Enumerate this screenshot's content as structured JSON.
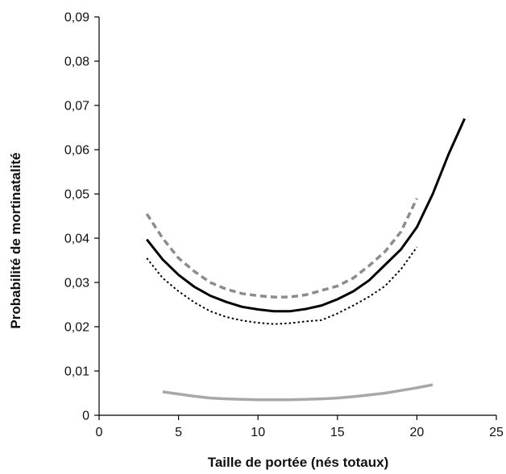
{
  "chart_data": {
    "type": "line",
    "title": "",
    "xlabel": "Taille de portée (nés totaux)",
    "ylabel": "Probabilité de mortinatalité",
    "xlim": [
      0,
      25
    ],
    "ylim": [
      0,
      0.09
    ],
    "x_ticks": [
      0,
      5,
      10,
      15,
      20,
      25
    ],
    "x_tick_labels": [
      "0",
      "5",
      "10",
      "15",
      "20",
      "25"
    ],
    "y_ticks": [
      0,
      0.01,
      0.02,
      0.03,
      0.04,
      0.05,
      0.06,
      0.07,
      0.08,
      0.09
    ],
    "y_tick_labels": [
      "0",
      "0,01",
      "0,02",
      "0,03",
      "0,04",
      "0,05",
      "0,06",
      "0,07",
      "0,08",
      "0,09"
    ],
    "grid": false,
    "legend": "none",
    "series": [
      {
        "style": "dashed",
        "color": "#8c8c8c",
        "x": [
          3,
          4,
          5,
          6,
          7,
          8,
          9,
          10,
          11,
          12,
          13,
          14,
          15,
          16,
          17,
          18,
          19,
          20
        ],
        "values": [
          0.0455,
          0.04,
          0.0355,
          0.0325,
          0.03,
          0.0285,
          0.0275,
          0.027,
          0.0267,
          0.0267,
          0.0272,
          0.0282,
          0.0292,
          0.031,
          0.0338,
          0.037,
          0.0415,
          0.049
        ]
      },
      {
        "style": "solid",
        "color": "#000000",
        "x": [
          3,
          4,
          5,
          6,
          7,
          8,
          9,
          10,
          11,
          12,
          13,
          14,
          15,
          16,
          17,
          18,
          19,
          20,
          21,
          22,
          23
        ],
        "values": [
          0.0397,
          0.0352,
          0.0317,
          0.029,
          0.027,
          0.0256,
          0.0245,
          0.0239,
          0.0235,
          0.0235,
          0.024,
          0.0248,
          0.0262,
          0.028,
          0.0305,
          0.034,
          0.0375,
          0.0425,
          0.05,
          0.059,
          0.067
        ]
      },
      {
        "style": "dotted",
        "color": "#000000",
        "x": [
          3,
          4,
          5,
          6,
          7,
          8,
          9,
          10,
          11,
          12,
          13,
          14,
          15,
          16,
          17,
          18,
          19,
          20
        ],
        "values": [
          0.0355,
          0.031,
          0.028,
          0.0255,
          0.0235,
          0.0222,
          0.0214,
          0.0209,
          0.0206,
          0.0208,
          0.0212,
          0.0215,
          0.023,
          0.0248,
          0.0268,
          0.0292,
          0.033,
          0.038
        ]
      },
      {
        "style": "solid",
        "color": "#a8a8a8",
        "x": [
          4,
          5,
          6,
          7,
          8,
          9,
          10,
          11,
          12,
          13,
          14,
          15,
          16,
          17,
          18,
          19,
          20,
          21
        ],
        "values": [
          0.0053,
          0.0048,
          0.0043,
          0.0039,
          0.0037,
          0.0036,
          0.0035,
          0.0035,
          0.0035,
          0.0036,
          0.0037,
          0.0039,
          0.0042,
          0.0046,
          0.005,
          0.0056,
          0.0062,
          0.0069
        ]
      }
    ]
  }
}
